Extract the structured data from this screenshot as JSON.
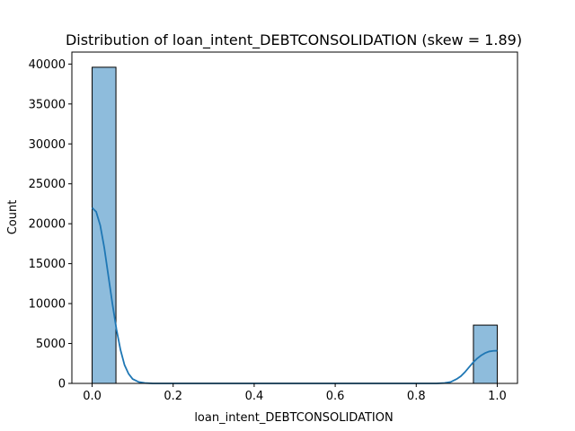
{
  "chart_data": {
    "type": "bar",
    "title": "Distribution of loan_intent_DEBTCONSOLIDATION (skew = 1.89)",
    "xlabel": "loan_intent_DEBTCONSOLIDATION",
    "ylabel": "Count",
    "xlim": [
      -0.05,
      1.05
    ],
    "ylim": [
      0,
      41500
    ],
    "x_ticks": [
      0.0,
      0.2,
      0.4,
      0.6,
      0.8,
      1.0
    ],
    "x_tick_labels": [
      "0.0",
      "0.2",
      "0.4",
      "0.6",
      "0.8",
      "1.0"
    ],
    "y_ticks": [
      0,
      5000,
      10000,
      15000,
      20000,
      25000,
      30000,
      35000,
      40000
    ],
    "y_tick_labels": [
      "0",
      "5000",
      "10000",
      "15000",
      "20000",
      "25000",
      "30000",
      "35000",
      "40000"
    ],
    "histogram": {
      "bins": [
        {
          "x0": 0.0,
          "x1": 0.0588,
          "count": 39600
        },
        {
          "x0": 0.9412,
          "x1": 1.0,
          "count": 7300
        }
      ],
      "fill_color": "#8ebcdc",
      "edge_color": "#000000"
    },
    "kde": {
      "color": "#1f77b4",
      "points": [
        [
          0.0,
          22000
        ],
        [
          0.01,
          21500
        ],
        [
          0.02,
          19800
        ],
        [
          0.03,
          17000
        ],
        [
          0.04,
          13500
        ],
        [
          0.05,
          10000
        ],
        [
          0.06,
          6800
        ],
        [
          0.07,
          4200
        ],
        [
          0.08,
          2300
        ],
        [
          0.09,
          1200
        ],
        [
          0.1,
          550
        ],
        [
          0.115,
          180
        ],
        [
          0.13,
          50
        ],
        [
          0.15,
          0
        ],
        [
          0.2,
          0
        ],
        [
          0.4,
          0
        ],
        [
          0.6,
          0
        ],
        [
          0.8,
          0
        ],
        [
          0.85,
          0
        ],
        [
          0.87,
          50
        ],
        [
          0.885,
          180
        ],
        [
          0.9,
          550
        ],
        [
          0.91,
          900
        ],
        [
          0.92,
          1400
        ],
        [
          0.93,
          2000
        ],
        [
          0.94,
          2600
        ],
        [
          0.95,
          3100
        ],
        [
          0.96,
          3500
        ],
        [
          0.97,
          3800
        ],
        [
          0.98,
          4000
        ],
        [
          0.99,
          4080
        ],
        [
          1.0,
          4100
        ]
      ]
    }
  }
}
